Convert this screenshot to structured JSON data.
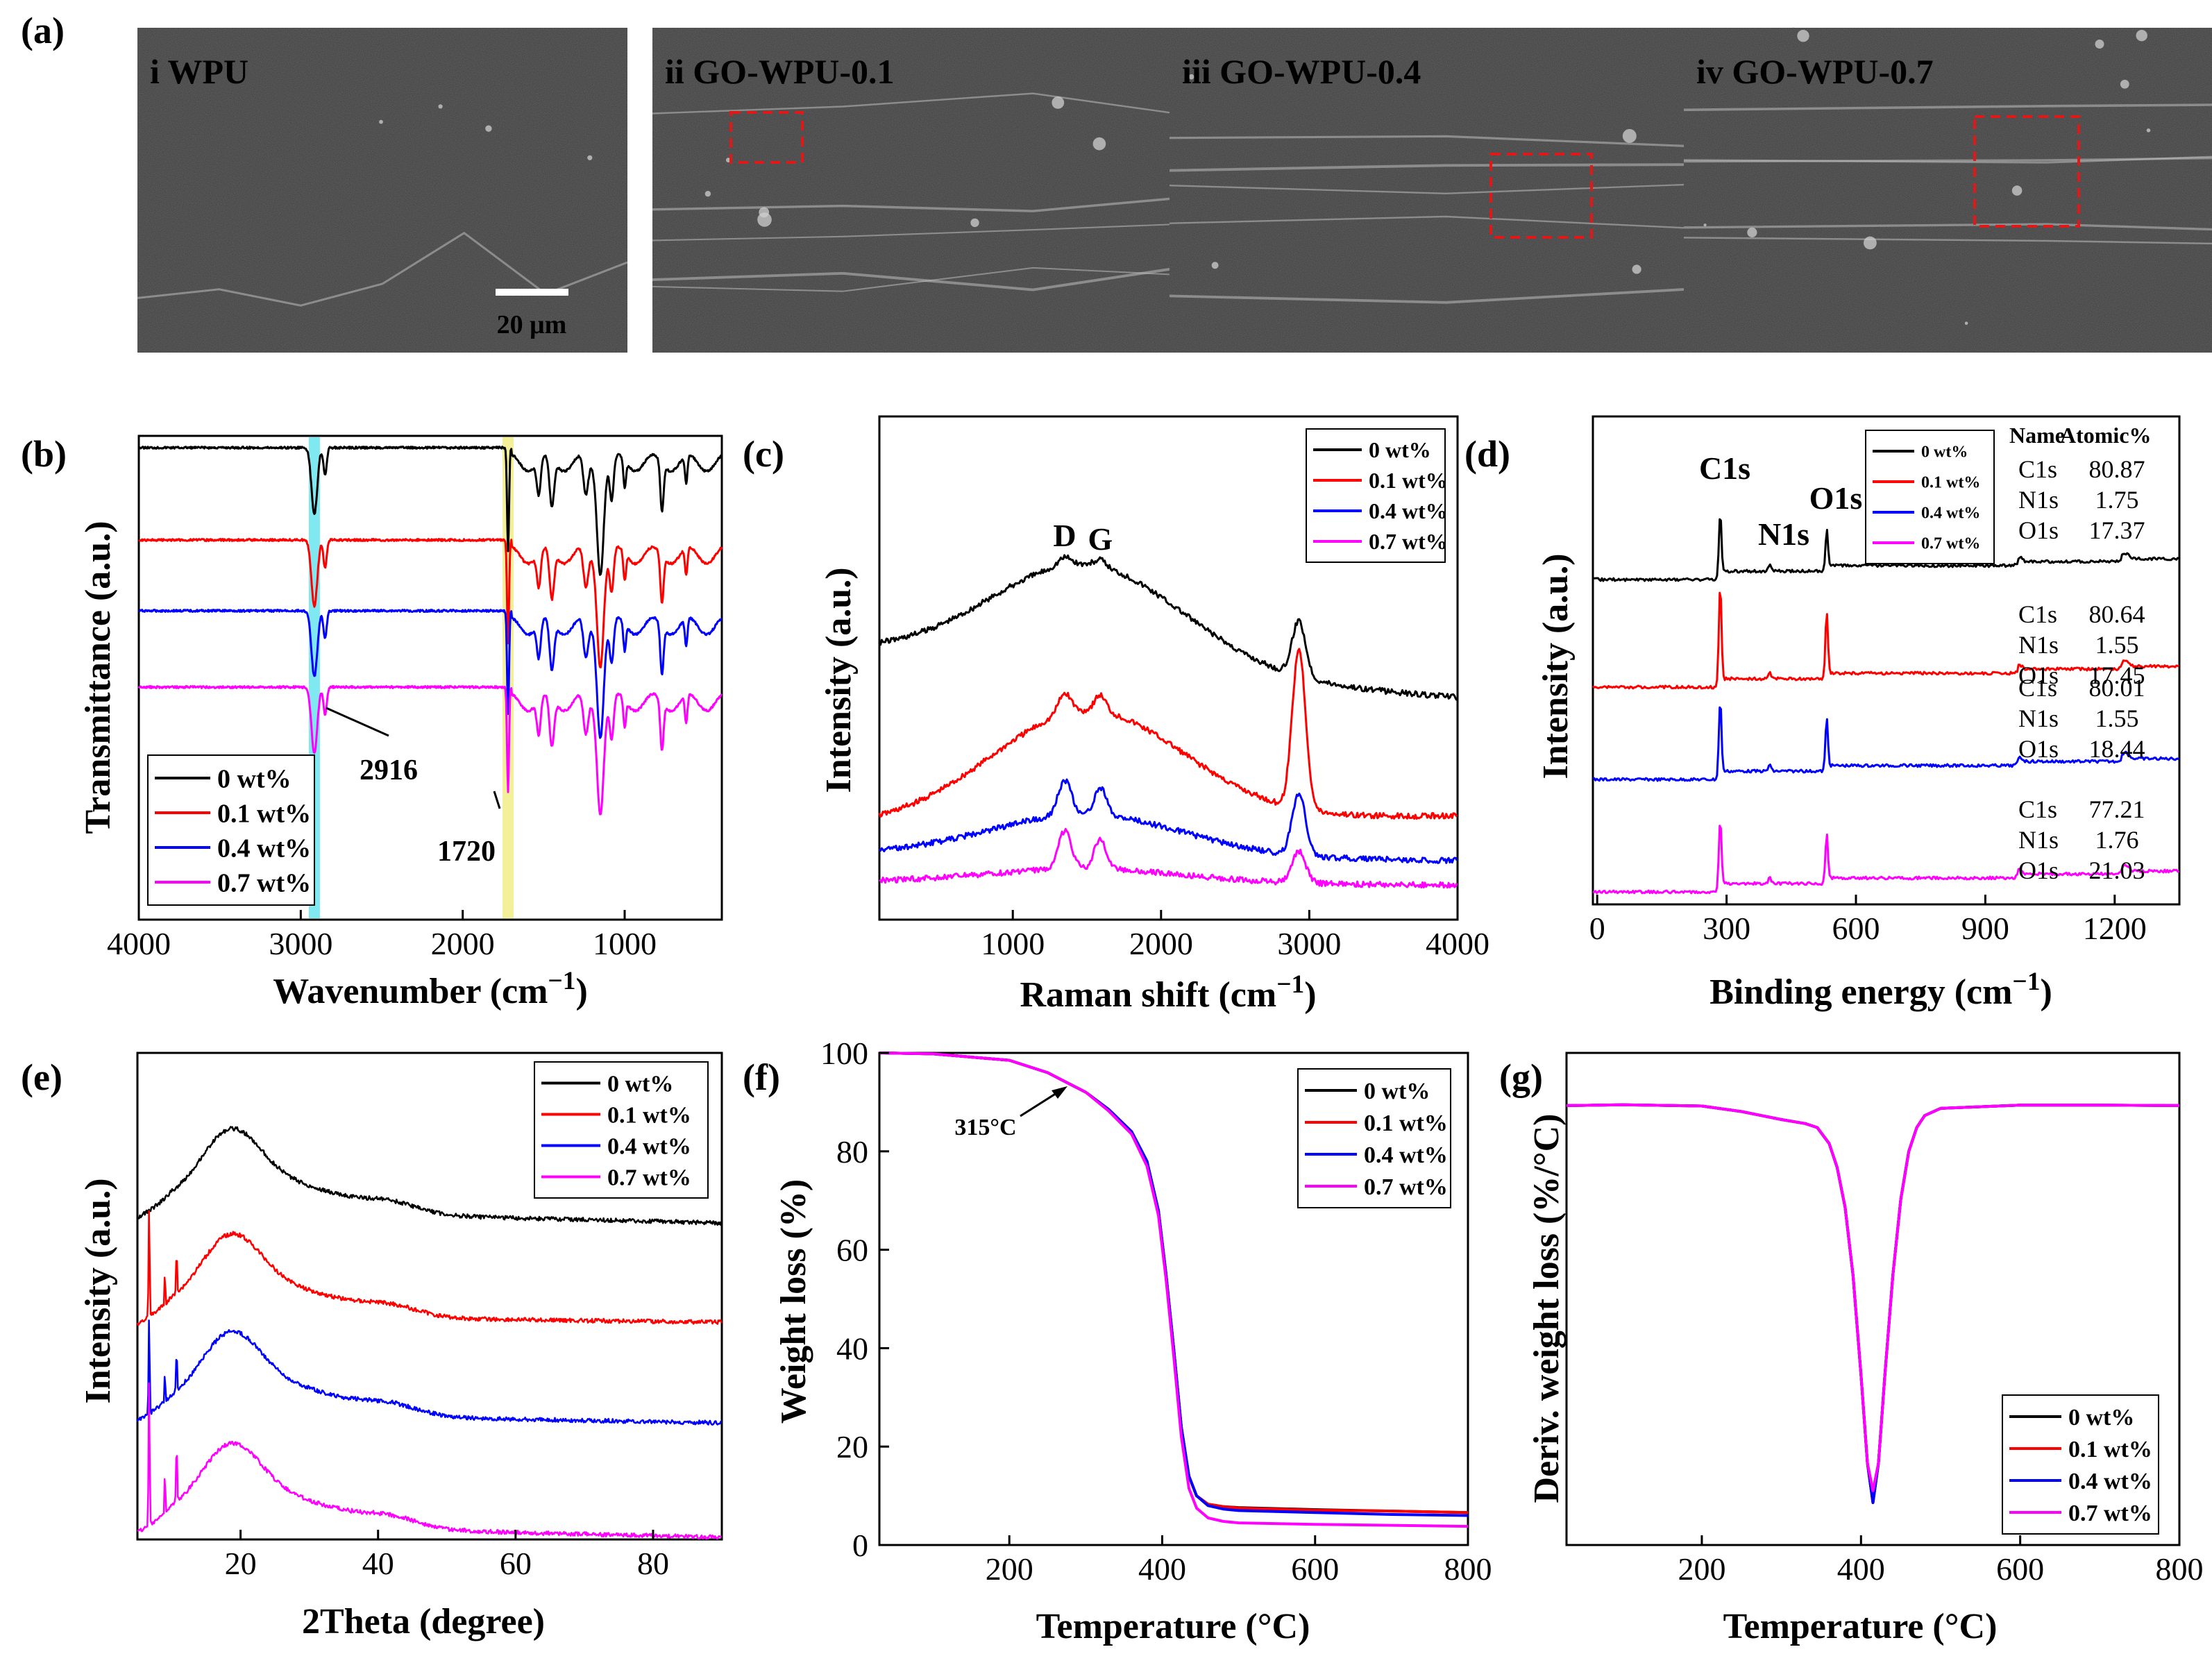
{
  "panel_labels": [
    "(a)",
    "(b)",
    "(c)",
    "(d)",
    "(e)",
    "(f)",
    "(g)"
  ],
  "sem": {
    "images": [
      {
        "roman": "i",
        "name": "WPU",
        "scale": "20 μm",
        "has_roi": false
      },
      {
        "roman": "ii",
        "name": "GO-WPU-0.1",
        "scale": "20 μm",
        "has_roi": true
      },
      {
        "roman": "iii",
        "name": "GO-WPU-0.4",
        "scale": "20 μm",
        "has_roi": true
      },
      {
        "roman": "iv",
        "name": "GO-WPU-0.7",
        "scale": "20 μm",
        "has_roi": true
      }
    ],
    "background": "#3d3d3d",
    "roi_color": "#e01818"
  },
  "legend_labels": [
    "0 wt%",
    "0.1 wt%",
    "0.4 wt%",
    "0.7 wt%"
  ],
  "series_colors": [
    "#000000",
    "#ff0000",
    "#0000ff",
    "#ff00ff"
  ],
  "chart_data": [
    {
      "id": "b",
      "type": "line",
      "xlabel": "Wavenumber (cm−1)",
      "ylabel": "Transmittance (a.u.)",
      "xlim": [
        4000,
        400
      ],
      "x_reversed": true,
      "xticks": [
        4000,
        3000,
        2000,
        1000
      ],
      "highlights": [
        {
          "x": 2916,
          "color": "#7fe8f0"
        },
        {
          "x": 1720,
          "color": "#f4f09a"
        }
      ],
      "annotations": [
        {
          "text": "2916",
          "x": 2916
        },
        {
          "text": "1720",
          "x": 1720
        }
      ],
      "legend": "bottom-left",
      "peaks_cm1": [
        2916,
        1720,
        1530,
        1450,
        1240,
        1150,
        1080,
        770
      ],
      "series": [
        {
          "name": "0 wt%",
          "offset": 3
        },
        {
          "name": "0.1 wt%",
          "offset": 2
        },
        {
          "name": "0.4 wt%",
          "offset": 1
        },
        {
          "name": "0.7 wt%",
          "offset": 0
        }
      ]
    },
    {
      "id": "c",
      "type": "line",
      "xlabel": "Raman shift (cm−1)",
      "ylabel": "Intensity (a.u.)",
      "xlim": [
        100,
        4000
      ],
      "xticks": [
        1000,
        2000,
        3000,
        4000
      ],
      "annotations": [
        {
          "text": "D",
          "x": 1350
        },
        {
          "text": "G",
          "x": 1590
        }
      ],
      "legend": "top-right",
      "series": [
        {
          "name": "0 wt%",
          "offset": 3
        },
        {
          "name": "0.1 wt%",
          "offset": 2
        },
        {
          "name": "0.4 wt%",
          "offset": 1
        },
        {
          "name": "0.7 wt%",
          "offset": 0
        }
      ]
    },
    {
      "id": "d",
      "type": "line",
      "xlabel": "Binding energy (cm−1)",
      "ylabel": "Intensity (a.u.)",
      "xlim": [
        -10,
        1350
      ],
      "xticks": [
        0,
        300,
        600,
        900,
        1200
      ],
      "peak_labels": [
        {
          "text": "C1s",
          "x": 285
        },
        {
          "text": "N1s",
          "x": 400
        },
        {
          "text": "O1s",
          "x": 532
        }
      ],
      "legend": "top-right",
      "table_header": [
        "Name",
        "Atomic%"
      ],
      "tables": [
        [
          [
            "C1s",
            "80.87"
          ],
          [
            "N1s",
            "1.75"
          ],
          [
            "O1s",
            "17.37"
          ]
        ],
        [
          [
            "C1s",
            "80.64"
          ],
          [
            "N1s",
            "1.55"
          ],
          [
            "O1s",
            "17.45"
          ]
        ],
        [
          [
            "C1s",
            "80.01"
          ],
          [
            "N1s",
            "1.55"
          ],
          [
            "O1s",
            "18.44"
          ]
        ],
        [
          [
            "C1s",
            "77.21"
          ],
          [
            "N1s",
            "1.76"
          ],
          [
            "O1s",
            "21.03"
          ]
        ]
      ],
      "series": [
        {
          "name": "0 wt%",
          "offset": 3
        },
        {
          "name": "0.1 wt%",
          "offset": 2
        },
        {
          "name": "0.4 wt%",
          "offset": 1
        },
        {
          "name": "0.7 wt%",
          "offset": 0
        }
      ]
    },
    {
      "id": "e",
      "type": "line",
      "xlabel": "2Theta (degree)",
      "ylabel": "Intensity (a.u.)",
      "xlim": [
        5,
        90
      ],
      "xticks": [
        20,
        40,
        60,
        80
      ],
      "legend": "top-right",
      "broad_peak_deg": 18.5,
      "series": [
        {
          "name": "0 wt%",
          "offset": 3
        },
        {
          "name": "0.1 wt%",
          "offset": 2
        },
        {
          "name": "0.4 wt%",
          "offset": 1
        },
        {
          "name": "0.7 wt%",
          "offset": 0
        }
      ]
    },
    {
      "id": "f",
      "type": "line",
      "xlabel": "Temperature (°C)",
      "ylabel": "Weight loss (%)",
      "xlim": [
        30,
        800
      ],
      "ylim": [
        0,
        100
      ],
      "xticks": [
        200,
        400,
        600,
        800
      ],
      "yticks": [
        0,
        20,
        40,
        60,
        80,
        100
      ],
      "annotations": [
        {
          "text": "315°C",
          "x": 315,
          "y": 95
        }
      ],
      "legend": "top-right",
      "x": [
        30,
        100,
        200,
        250,
        300,
        330,
        360,
        380,
        395,
        405,
        415,
        425,
        435,
        445,
        460,
        480,
        500,
        600,
        700,
        800
      ],
      "series": [
        {
          "name": "0 wt%",
          "values": [
            100,
            99.8,
            98.5,
            96,
            92,
            88.5,
            84,
            78,
            68,
            55,
            40,
            24,
            14,
            10,
            8.3,
            7.8,
            7.6,
            7.2,
            6.9,
            6.6
          ]
        },
        {
          "name": "0.1 wt%",
          "values": [
            100,
            99.8,
            98.5,
            96,
            92,
            88.5,
            84,
            78,
            68,
            55,
            40,
            24,
            14,
            10,
            8.3,
            7.8,
            7.5,
            7.1,
            6.9,
            6.6
          ]
        },
        {
          "name": "0.4 wt%",
          "values": [
            100,
            99.8,
            98.5,
            96,
            92,
            88.5,
            84,
            78,
            68,
            55,
            40,
            24,
            14,
            10,
            8.0,
            7.3,
            7.0,
            6.6,
            6.2,
            6.0
          ]
        },
        {
          "name": "0.7 wt%",
          "values": [
            100,
            99.8,
            98.5,
            96,
            92,
            88.2,
            83.5,
            77,
            67,
            54,
            38.5,
            22,
            11.5,
            7.5,
            5.5,
            4.8,
            4.5,
            4.2,
            4.0,
            3.8
          ]
        }
      ]
    },
    {
      "id": "g",
      "type": "line",
      "xlabel": "Temperature (°C)",
      "ylabel": "Deriv. weight loss (%/°C)",
      "xlim": [
        30,
        800
      ],
      "xticks": [
        200,
        400,
        600,
        800
      ],
      "legend": "bottom-right",
      "x": [
        30,
        100,
        200,
        250,
        300,
        330,
        345,
        360,
        370,
        380,
        390,
        400,
        408,
        415,
        422,
        430,
        440,
        450,
        460,
        470,
        480,
        500,
        600,
        700,
        800
      ],
      "series": [
        {
          "name": "0 wt%",
          "values": [
            -0.05,
            -0.03,
            -0.06,
            -0.2,
            -0.4,
            -0.5,
            -0.6,
            -1.0,
            -1.6,
            -2.6,
            -4.3,
            -6.8,
            -9.0,
            -10.0,
            -9.0,
            -6.8,
            -4.3,
            -2.4,
            -1.2,
            -0.6,
            -0.3,
            -0.12,
            -0.04,
            -0.04,
            -0.05
          ]
        },
        {
          "name": "0.1 wt%",
          "values": [
            -0.05,
            -0.03,
            -0.06,
            -0.2,
            -0.4,
            -0.5,
            -0.6,
            -1.0,
            -1.6,
            -2.6,
            -4.3,
            -6.8,
            -9.0,
            -10.0,
            -9.0,
            -6.8,
            -4.3,
            -2.4,
            -1.2,
            -0.6,
            -0.3,
            -0.12,
            -0.04,
            -0.04,
            -0.05
          ]
        },
        {
          "name": "0.4 wt%",
          "values": [
            -0.05,
            -0.03,
            -0.06,
            -0.2,
            -0.4,
            -0.5,
            -0.6,
            -1.0,
            -1.6,
            -2.6,
            -4.3,
            -6.8,
            -9.0,
            -10.0,
            -9.0,
            -6.8,
            -4.3,
            -2.4,
            -1.2,
            -0.6,
            -0.3,
            -0.12,
            -0.04,
            -0.04,
            -0.05
          ]
        },
        {
          "name": "0.7 wt%",
          "values": [
            -0.05,
            -0.03,
            -0.06,
            -0.2,
            -0.4,
            -0.5,
            -0.6,
            -1.0,
            -1.6,
            -2.6,
            -4.3,
            -6.8,
            -9.0,
            -9.7,
            -9.0,
            -6.8,
            -4.3,
            -2.4,
            -1.2,
            -0.6,
            -0.3,
            -0.12,
            -0.04,
            -0.04,
            -0.05
          ]
        }
      ]
    }
  ]
}
